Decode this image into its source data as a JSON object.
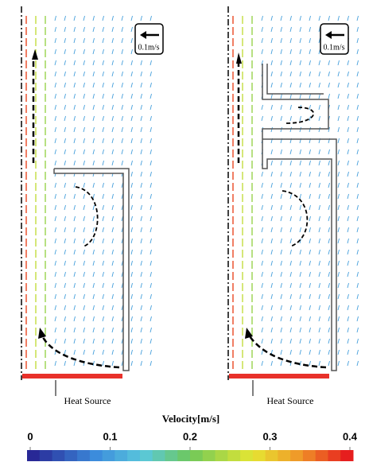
{
  "panels": [
    {
      "scale_label": "0.1m/s",
      "source_label": "Heat Source"
    },
    {
      "scale_label": "0.1m/s",
      "source_label": "Heat Source"
    }
  ],
  "colorbar": {
    "title": "Velocity[m/s]",
    "lim": [
      0,
      0.4
    ],
    "ticks": [
      0,
      0.1,
      0.2,
      0.3,
      0.4
    ]
  }
}
